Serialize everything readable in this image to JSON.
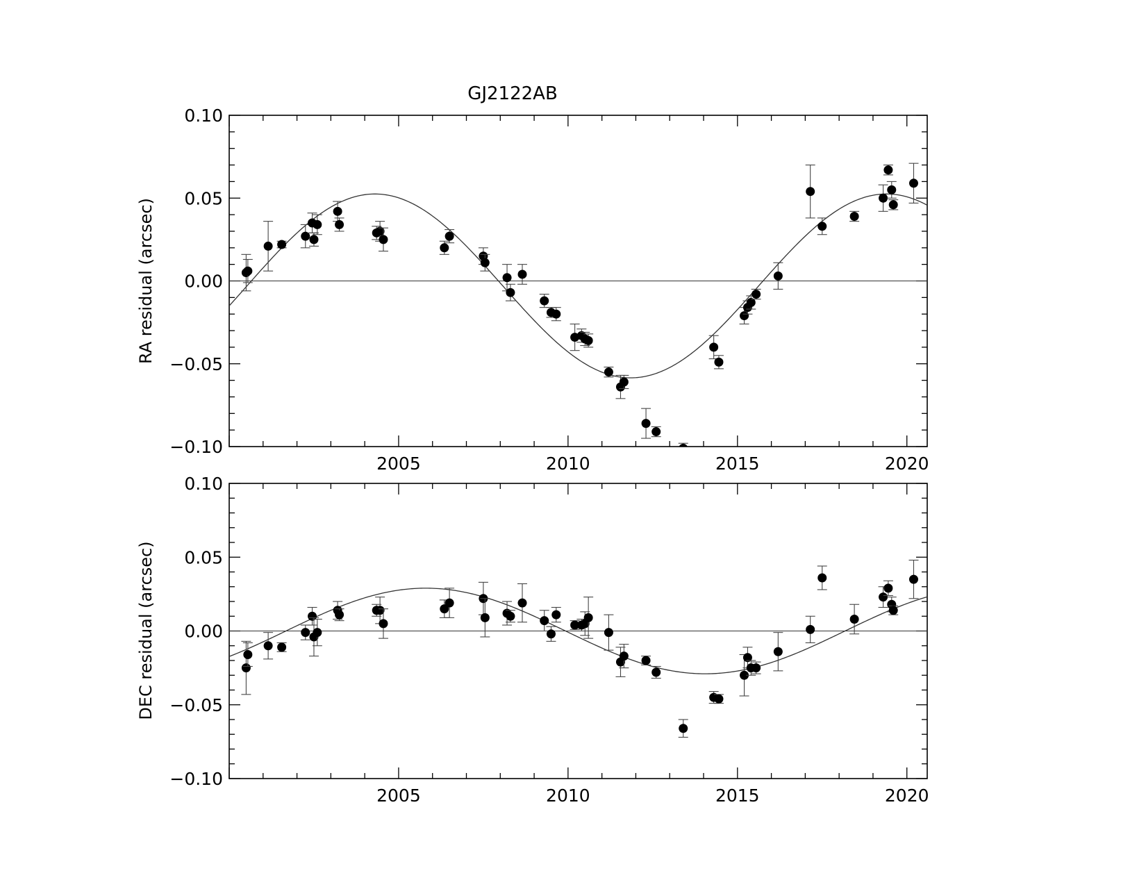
{
  "title": "GJ2122AB",
  "chart_data": [
    {
      "type": "scatter",
      "title": "GJ2122AB",
      "xlabel": "",
      "ylabel": "RA residual (arcsec)",
      "xlim": [
        2000.0,
        2020.6
      ],
      "ylim": [
        -0.1,
        0.1
      ],
      "xticks": [
        "2005",
        "2010",
        "2015",
        "2020"
      ],
      "yticks": [
        "0.10",
        "0.05",
        "0.00",
        "−0.05",
        "−0.10"
      ],
      "fit_curve": {
        "amplitude": 0.0555,
        "offset": -0.003,
        "period_years": 15.1,
        "peak_year": 2004.3
      },
      "zero_line": true,
      "series": [
        {
          "points": [
            {
              "x": 2000.5,
              "y": 0.005,
              "err": 0.011
            },
            {
              "x": 2000.55,
              "y": 0.006,
              "err": 0.007
            },
            {
              "x": 2001.15,
              "y": 0.021,
              "err": 0.015
            },
            {
              "x": 2001.55,
              "y": 0.022,
              "err": 0.002
            },
            {
              "x": 2002.25,
              "y": 0.027,
              "err": 0.007
            },
            {
              "x": 2002.45,
              "y": 0.035,
              "err": 0.006
            },
            {
              "x": 2002.5,
              "y": 0.025,
              "err": 0.004
            },
            {
              "x": 2002.6,
              "y": 0.034,
              "err": 0.006
            },
            {
              "x": 2003.2,
              "y": 0.042,
              "err": 0.006
            },
            {
              "x": 2003.25,
              "y": 0.034,
              "err": 0.004
            },
            {
              "x": 2004.35,
              "y": 0.029,
              "err": 0.004
            },
            {
              "x": 2004.45,
              "y": 0.03,
              "err": 0.006
            },
            {
              "x": 2004.55,
              "y": 0.025,
              "err": 0.007
            },
            {
              "x": 2006.35,
              "y": 0.02,
              "err": 0.004
            },
            {
              "x": 2006.5,
              "y": 0.027,
              "err": 0.004
            },
            {
              "x": 2007.5,
              "y": 0.015,
              "err": 0.005
            },
            {
              "x": 2007.55,
              "y": 0.011,
              "err": 0.005
            },
            {
              "x": 2008.2,
              "y": 0.002,
              "err": 0.008
            },
            {
              "x": 2008.3,
              "y": -0.007,
              "err": 0.005
            },
            {
              "x": 2008.65,
              "y": 0.004,
              "err": 0.006
            },
            {
              "x": 2009.3,
              "y": -0.012,
              "err": 0.004
            },
            {
              "x": 2009.5,
              "y": -0.019,
              "err": 0.003
            },
            {
              "x": 2009.65,
              "y": -0.02,
              "err": 0.004
            },
            {
              "x": 2010.2,
              "y": -0.034,
              "err": 0.008
            },
            {
              "x": 2010.4,
              "y": -0.033,
              "err": 0.004
            },
            {
              "x": 2010.5,
              "y": -0.035,
              "err": 0.004
            },
            {
              "x": 2010.6,
              "y": -0.036,
              "err": 0.004
            },
            {
              "x": 2011.2,
              "y": -0.055,
              "err": 0.003
            },
            {
              "x": 2011.55,
              "y": -0.064,
              "err": 0.007
            },
            {
              "x": 2011.65,
              "y": -0.061,
              "err": 0.004
            },
            {
              "x": 2012.3,
              "y": -0.086,
              "err": 0.009
            },
            {
              "x": 2012.6,
              "y": -0.091,
              "err": 0.003
            },
            {
              "x": 2013.4,
              "y": -0.101,
              "err": 0.003
            },
            {
              "x": 2014.3,
              "y": -0.04,
              "err": 0.007
            },
            {
              "x": 2014.45,
              "y": -0.049,
              "err": 0.004
            },
            {
              "x": 2015.2,
              "y": -0.021,
              "err": 0.005
            },
            {
              "x": 2015.3,
              "y": -0.016,
              "err": 0.004
            },
            {
              "x": 2015.4,
              "y": -0.013,
              "err": 0.004
            },
            {
              "x": 2015.55,
              "y": -0.008,
              "err": 0.003
            },
            {
              "x": 2016.2,
              "y": 0.003,
              "err": 0.008
            },
            {
              "x": 2017.15,
              "y": 0.054,
              "err": 0.016
            },
            {
              "x": 2017.5,
              "y": 0.033,
              "err": 0.005
            },
            {
              "x": 2018.45,
              "y": 0.039,
              "err": 0.003
            },
            {
              "x": 2019.3,
              "y": 0.05,
              "err": 0.008
            },
            {
              "x": 2019.45,
              "y": 0.067,
              "err": 0.003
            },
            {
              "x": 2019.55,
              "y": 0.055,
              "err": 0.005
            },
            {
              "x": 2019.6,
              "y": 0.046,
              "err": 0.003
            },
            {
              "x": 2020.2,
              "y": 0.059,
              "err": 0.012
            }
          ]
        }
      ]
    },
    {
      "type": "scatter",
      "title": "",
      "xlabel": "",
      "ylabel": "DEC residual (arcsec)",
      "xlim": [
        2000.0,
        2020.6
      ],
      "ylim": [
        -0.1,
        0.1
      ],
      "xticks": [
        "2005",
        "2010",
        "2015",
        "2020"
      ],
      "yticks": [
        "0.10",
        "0.05",
        "0.00",
        "−0.05",
        "−0.10"
      ],
      "fit_curve": {
        "amplitude": 0.029,
        "offset": 0.0,
        "period_years": 16.5,
        "peak_year": 2005.8
      },
      "zero_line": true,
      "series": [
        {
          "points": [
            {
              "x": 2000.5,
              "y": -0.025,
              "err": 0.018
            },
            {
              "x": 2000.55,
              "y": -0.016,
              "err": 0.008
            },
            {
              "x": 2001.15,
              "y": -0.01,
              "err": 0.009
            },
            {
              "x": 2001.55,
              "y": -0.011,
              "err": 0.003
            },
            {
              "x": 2002.25,
              "y": -0.001,
              "err": 0.005
            },
            {
              "x": 2002.45,
              "y": 0.01,
              "err": 0.006
            },
            {
              "x": 2002.5,
              "y": -0.004,
              "err": 0.013
            },
            {
              "x": 2002.6,
              "y": -0.001,
              "err": 0.009
            },
            {
              "x": 2003.2,
              "y": 0.014,
              "err": 0.006
            },
            {
              "x": 2003.25,
              "y": 0.011,
              "err": 0.004
            },
            {
              "x": 2004.35,
              "y": 0.014,
              "err": 0.004
            },
            {
              "x": 2004.45,
              "y": 0.014,
              "err": 0.009
            },
            {
              "x": 2004.55,
              "y": 0.005,
              "err": 0.01
            },
            {
              "x": 2006.35,
              "y": 0.015,
              "err": 0.006
            },
            {
              "x": 2006.5,
              "y": 0.019,
              "err": 0.01
            },
            {
              "x": 2007.5,
              "y": 0.022,
              "err": 0.011
            },
            {
              "x": 2007.55,
              "y": 0.009,
              "err": 0.013
            },
            {
              "x": 2008.2,
              "y": 0.012,
              "err": 0.008
            },
            {
              "x": 2008.3,
              "y": 0.01,
              "err": 0.004
            },
            {
              "x": 2008.65,
              "y": 0.019,
              "err": 0.013
            },
            {
              "x": 2009.3,
              "y": 0.007,
              "err": 0.007
            },
            {
              "x": 2009.5,
              "y": -0.002,
              "err": 0.005
            },
            {
              "x": 2009.65,
              "y": 0.011,
              "err": 0.005
            },
            {
              "x": 2010.2,
              "y": 0.004,
              "err": 0.003
            },
            {
              "x": 2010.4,
              "y": 0.004,
              "err": 0.004
            },
            {
              "x": 2010.5,
              "y": 0.005,
              "err": 0.008
            },
            {
              "x": 2010.6,
              "y": 0.009,
              "err": 0.014
            },
            {
              "x": 2011.2,
              "y": -0.001,
              "err": 0.012
            },
            {
              "x": 2011.55,
              "y": -0.021,
              "err": 0.01
            },
            {
              "x": 2011.65,
              "y": -0.017,
              "err": 0.008
            },
            {
              "x": 2012.3,
              "y": -0.02,
              "err": 0.003
            },
            {
              "x": 2012.6,
              "y": -0.028,
              "err": 0.004
            },
            {
              "x": 2013.4,
              "y": -0.066,
              "err": 0.006
            },
            {
              "x": 2014.3,
              "y": -0.045,
              "err": 0.004
            },
            {
              "x": 2014.45,
              "y": -0.046,
              "err": 0.003
            },
            {
              "x": 2015.2,
              "y": -0.03,
              "err": 0.014
            },
            {
              "x": 2015.3,
              "y": -0.018,
              "err": 0.007
            },
            {
              "x": 2015.4,
              "y": -0.025,
              "err": 0.005
            },
            {
              "x": 2015.55,
              "y": -0.025,
              "err": 0.004
            },
            {
              "x": 2016.2,
              "y": -0.014,
              "err": 0.013
            },
            {
              "x": 2017.15,
              "y": 0.001,
              "err": 0.009
            },
            {
              "x": 2017.5,
              "y": 0.036,
              "err": 0.008
            },
            {
              "x": 2018.45,
              "y": 0.008,
              "err": 0.01
            },
            {
              "x": 2019.3,
              "y": 0.023,
              "err": 0.007
            },
            {
              "x": 2019.45,
              "y": 0.029,
              "err": 0.005
            },
            {
              "x": 2019.55,
              "y": 0.018,
              "err": 0.005
            },
            {
              "x": 2019.6,
              "y": 0.014,
              "err": 0.003
            },
            {
              "x": 2020.2,
              "y": 0.035,
              "err": 0.013
            }
          ]
        }
      ]
    }
  ]
}
